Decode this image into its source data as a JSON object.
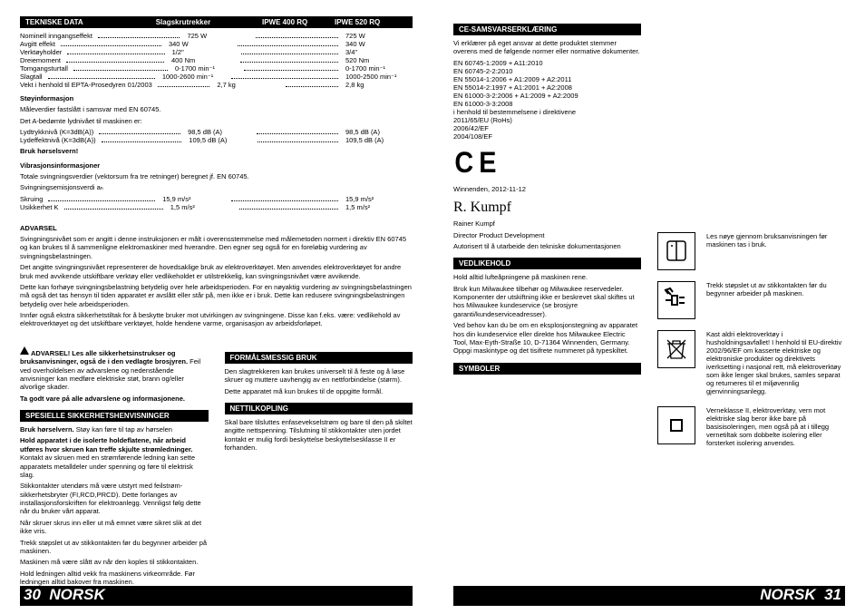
{
  "left": {
    "header": {
      "title": "TEKNISKE DATA",
      "mid": "Slagskrutrekker",
      "c1": "IPWE 400 RQ",
      "c2": "IPWE 520 RQ"
    },
    "specs": [
      {
        "lbl": "Nominell inngangseffekt",
        "v1": "725 W",
        "v2": "725 W"
      },
      {
        "lbl": "Avgitt effekt",
        "v1": "340 W",
        "v2": "340 W"
      },
      {
        "lbl": "Verktøyholder",
        "v1": "1/2\"",
        "v2": "3/4\""
      },
      {
        "lbl": "Dreiemoment",
        "v1": "400 Nm",
        "v2": "520 Nm"
      },
      {
        "lbl": "Tomgangsturtall",
        "v1": "0-1700 min⁻¹",
        "v2": "0-1700 min⁻¹"
      },
      {
        "lbl": "Slagtall",
        "v1": "1000-2600 min⁻¹",
        "v2": "1000-2500 min⁻¹"
      },
      {
        "lbl": "Vekt i henhold til EPTA-Prosedyren 01/2003",
        "v1": "2,7 kg",
        "v2": "2,8 kg"
      }
    ],
    "noise_head": "Støyinformasjon",
    "noise_intro": "Måleverdier fastslått i samsvar med EN 60745.",
    "noise_intro2": "Det A-bedømte lydnivået til maskinen er:",
    "noise_rows": [
      {
        "lbl": "  Lydtrykknivå (K=3dB(A))",
        "v1": "98,5 dB (A)",
        "v2": "98,5 dB (A)"
      },
      {
        "lbl": "  Lydeffektnivå (K=3dB(A))",
        "v1": "109,5 dB (A)",
        "v2": "109,5 dB (A)"
      }
    ],
    "wear_head": "Bruk hørselsvern!",
    "vib_head": "Vibrasjonsinformasjoner",
    "vib_intro": "Totale svingningsverdier (vektorsum fra tre retninger) beregnet jf. EN 60745.",
    "vib_intro2": "Svingningsemisjonsverdi aₕ",
    "vib_rows": [
      {
        "lbl": "  Skruing",
        "v1": "15,9 m/s²",
        "v2": "15,9 m/s²"
      },
      {
        "lbl": "  Usikkerhet K",
        "v1": "1,5 m/s²",
        "v2": "1,5 m/s²"
      }
    ],
    "adv_head": "ADVARSEL",
    "adv_p1": "Svingningsnivået som er angitt i denne instruksjonen er målt i overensstemmelse med målemetoden normert i direktiv EN 60745 og kan brukes til å sammenligne elektromaskiner med hverandre. Den egner seg også for en foreløbig vurdering av svingningsbelastningen.",
    "adv_p2": "Det angitte svingningsnivået representerer de hovedsaklige bruk av elektroverktøyet. Men anvendes elektroverktøyet for andre bruk med avvikende utskiftbare verktøy eller vedlikeholdet er utilstrekkelig, kan svingningsnivået være avvikende.",
    "adv_p3": "Dette kan forhøye svingningsbelastning betydelig over hele arbeidsperioden. For en nøyaktig vurdering av svingningsbelastningen må også det tas hensyn til tiden apparatet er avslått eller står på, men ikke er i bruk. Dette kan redusere svingningsbelastningen betydelig over hele arbeidsperioden.",
    "adv_p4": "Innfør også ekstra sikkerhetstiltak for å beskytte bruker mot utvirkingen av svingningene. Disse kan f.eks. være: vedlikehold av elektroverktøyet og det utskiftbare verktøyet, holde hendene varme, organisasjon av arbeidsforløpet.",
    "warnbox_line1": "ADVARSEL! Les alle sikkerhetsinstrukser og bruksanvisninger, også de i den vedlagte brosjyren.",
    "warnbox_line2": "Feil ved overholdelsen av advarslene og nedenstående anvisninger kan medføre elektriske støt, brann og/eller alvorlige skader.",
    "warnbox_line3": "Ta godt vare på alle advarslene og informasjonene.",
    "spes_head": "SPESIELLE SIKKERHETSHENVISNINGER",
    "spes": [
      {
        "b": "Bruk hørselvern.",
        "t": "Støy kan føre til tap av hørselen"
      },
      {
        "b": "Hold apparatet i de isolerte holdeflatene, når arbeid utføres hvor skruen kan treffe skjulte strømledninger.",
        "t": "Kontakt av skruen med en strømførende ledning kan sette apparatets metalldeler under spenning og føre til elektrisk slag."
      }
    ],
    "spes2": [
      "Stikkontakter utendørs må være utstyrt med feilstrøm-sikkerhetsbryter (FI,RCD,PRCD). Dette forlanges av installasjonsforskriften for elektroanlegg. Vennligst følg dette når du bruker vårt apparat.",
      "Når skruer skrus inn eller ut må emnet være sikret slik at det ikke vris.",
      "Trekk støpslet ut av stikkontakten før du begynner arbeider på maskinen.",
      "Maskinen må være slått av når den koples til stikkontakten.",
      "Hold ledningen alltid vekk fra maskinens virkeområde. Før ledningen alltid bakover fra maskinen.",
      "Pass på kabler, gass- og vannledninger når du arbeider i vegger, tak eller gulv."
    ],
    "formal_head": "FORMÅLSMESSIG BRUK",
    "formal_p1": "Den slagtrekkeren kan brukes universelt til å feste og å løse skruer og muttere uavhengig av en nettforbindelse (størm).",
    "formal_p2": "Dette apparatet må kun brukes til de oppgitte formål.",
    "nett_head": "NETTILKOPLING",
    "nett_p": "Skal bare tilsluttes enfasevekselstrøm og bare til den på skiltet angitte nettspenning. Tilslutning til stikkontakter uten jordet kontakt er mulig fordi beskyttelse beskyttelsesklasse II er forhanden."
  },
  "right": {
    "ce_head": "CE-SAMSVARSERKLÆRING",
    "ce_p1": "Vi erklærer på eget ansvar at dette produktet stemmer overens med de følgende normer eller normative dokumenter.",
    "ce_list": [
      "EN 60745-1:2009 + A11:2010",
      "EN 60745-2-2:2010",
      "EN 55014-1:2006 + A1:2009 + A2:2011",
      "EN 55014-2:1997 + A1:2001 + A2:2008",
      "EN 61000-3-2:2006 + A1:2009 + A2:2009",
      "EN 61000-3-3:2008",
      "i henhold til bestemmelsene i direktivene",
      "2011/65/EU (RoHs)",
      "2006/42/EF",
      "2004/108/EF"
    ],
    "place_date": "Winnenden, 2012-11-12",
    "signer": "Rainer Kumpf",
    "signer_role": "Director Product Development",
    "signer_auth": "Autorisert til å utarbeide den tekniske dokumentasjonen",
    "ved_head": "VEDLIKEHOLD",
    "ved": [
      "Hold alltid lufteåpningene på maskinen rene.",
      "Bruk kun Milwaukee tilbehør og Milwaukee reservedeler. Komponenter der utskiftning ikke er beskrevet skal skiftes ut hos Milwaukee kundeservice (se brosjyre garanti/kundeserviceadresser).",
      "Ved behov kan du be om en eksplosjonstegning av apparatet hos din kundeservice eller direkte hos Milwaukee Electric Tool, Max-Eyth-Straße 10, D-71364 Winnenden, Germany. Oppgi maskintype og det tisifrete nummeret på typeskiltet."
    ],
    "sym_head": "SYMBOLER",
    "sym": [
      "Les nøye gjennom bruksanvisningen før maskinen tas i bruk.",
      "Trekk støpslet ut av stikkontakten før du begynner arbeider på maskinen.",
      "Kast aldri elektroverktøy i husholdningsavfallet! I henhold til EU-direktiv 2002/96/EF om kasserte elektriske og elektroniske produkter og direktivets iverksetting i nasjonal rett, må elektroverktøy som ikke lenger skal brukes, samles separat og returneres til et miljøvennlig gjenvinningsanlegg.",
      "Verneklasse II, elektroverktøy, vern mot elektriske slag beror ikke bare på basisisoleringen, men også på at i tillegg vernetiltak som dobbelte isolering eller forsterket isolering anvendes."
    ]
  },
  "pages": {
    "left_label": "NORSK",
    "left_num": "30",
    "right_label": "NORSK",
    "right_num": "31"
  }
}
